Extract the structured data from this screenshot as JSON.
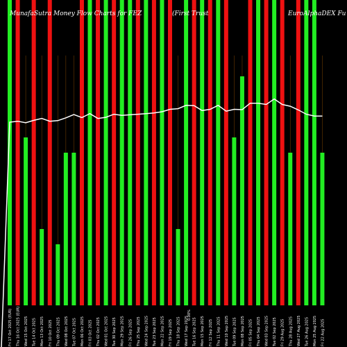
{
  "chart_data": {
    "type": "bar",
    "title_parts": [
      "MunafaSutra Money Flow Charts for FEZ",
      "(First Trust",
      "EuroAlphaDEX  Fu"
    ],
    "bar_colors": {
      "up": "#22ee22",
      "down": "#ee1111"
    },
    "line_color": "#ffffff",
    "background": "#000000",
    "ylim": [
      0,
      100
    ],
    "categories": [
      "Fri 17 Oct 2025",
      "Thu 16 Oct 2025",
      "Wed 15 Oct 2025",
      "Tue 14 Oct 2025",
      "Mon 13 Oct 2025",
      "Fri 10 Oct 2025",
      "Thu 09 Oct 2025",
      "Wed 08 Oct 2025",
      "Tue 07 Oct 2025",
      "Mon 06 Oct 2025",
      "Fri 03 Oct 2025",
      "Thu 02 Oct 2025",
      "Wed 01 Oct 2025",
      "Tue 30 Sep 2025",
      "Mon 29 Sep 2025",
      "Fri 26 Sep 2025",
      "Thu 25 Sep 2025",
      "Wed 24 Sep 2025",
      "Tue 23 Sep 2025",
      "Mon 22 Sep 2025",
      "Fri 19 Sep 2025",
      "Thu 18 Sep 2025",
      "Wed 17 Sep 2025",
      "Tue 16 Sep 2025",
      "Mon 15 Sep 2025",
      "Fri 12 Sep 2025",
      "Thu 11 Sep 2025",
      "Wed 10 Sep 2025",
      "Tue 09 Sep 2025",
      "Mon 08 Sep 2025",
      "Fri 05 Sep 2025",
      "Thu 04 Sep 2025",
      "Wed 03 Sep 2025",
      "Tue 02 Sep 2025",
      "Fri 29 Aug 2025",
      "Thu 28 Aug 2025",
      "Wed 27 Aug 2025",
      "Tue 26 Aug 2025",
      "Mon 25 Aug 2025",
      "Fri 22 Aug 2025"
    ],
    "series": [
      {
        "colors": [
          "up",
          "red",
          "up",
          "red",
          "up",
          "red",
          "up",
          "up",
          "up",
          "red",
          "up",
          "red",
          "up",
          "red",
          "up",
          "up",
          "red",
          "up",
          "red",
          "up",
          "red",
          "up",
          "up",
          "red",
          "up",
          "red",
          "up",
          "red",
          "up",
          "up",
          "red",
          "up",
          "red",
          "up",
          "red",
          "up",
          "red",
          "up",
          "up",
          "up"
        ],
        "values": [
          100,
          100,
          55,
          100,
          25,
          100,
          20,
          50,
          50,
          100,
          100,
          100,
          100,
          100,
          100,
          100,
          100,
          100,
          100,
          100,
          100,
          25,
          100,
          100,
          100,
          100,
          100,
          100,
          55,
          75,
          100,
          100,
          100,
          100,
          100,
          50,
          100,
          100,
          100,
          50
        ]
      },
      {
        "type": "line",
        "values": [
          60,
          60.3,
          59.8,
          60.6,
          61.2,
          60.3,
          60.5,
          61.4,
          62.5,
          61.5,
          62.8,
          61.2,
          61.6,
          62.6,
          62.2,
          62.4,
          62.6,
          62.8,
          63,
          63.4,
          64.2,
          64.4,
          65.5,
          65.4,
          63.8,
          64.2,
          65.5,
          63.6,
          64.2,
          64.1,
          66.2,
          66.2,
          65.8,
          67.6,
          65.8,
          65.2,
          64,
          62.6,
          62,
          62
        ]
      }
    ],
    "bottom_labels": [
      "Fri 17 Oct 2025 (EUR)",
      "Thu 16 Oct 2025 (EUR)",
      "Wed 15 Oct 2025",
      "Tue 14 Oct 2025",
      "Mon 13 Oct 2025",
      "Fri 10 Oct 2025",
      "Thu 09 Oct 2025",
      "Wed 08 Oct 2025",
      "Tue 07 Oct 2025",
      "Mon 06 Oct 2025",
      "Fri 03 Oct 2025",
      "Thu 02 Oct 2025",
      "Wed 01 Oct 2025",
      "Tue 30 Sep 2025",
      "Mon 29 Sep 2025",
      "Fri 26 Sep 2025",
      "Thu 25 Sep 2025",
      "Wed 24 Sep 2025",
      "Tue 23 Sep 2025",
      "Mon 22 Sep 2025",
      "Fri 19 Sep 2025",
      "Thu 18 Sep 2025",
      "Wed 17 Sep 2025",
      "Tue 16 Sep 2025",
      "Mon 15 Sep 2025",
      "Fri 12 Sep 2025",
      "Thu 11 Sep 2025",
      "Wed 10 Sep 2025",
      "Tue 09 Sep 2025",
      "Mon 08 Sep 2025",
      "Fri 05 Sep 2025",
      "Thu 04 Sep 2025",
      "Wed 03 Sep 2025",
      "Tue 02 Sep 2025",
      "Fri 29 Aug 2025",
      "Thu 28 Aug 2025",
      "Wed 27 Aug 2025",
      "Tue 26 Aug 2025",
      "Mon 25 Aug 2025",
      "Fri 22 Aug 2025"
    ],
    "middle_label": "0.00%",
    "grid": false,
    "legend": "none"
  }
}
